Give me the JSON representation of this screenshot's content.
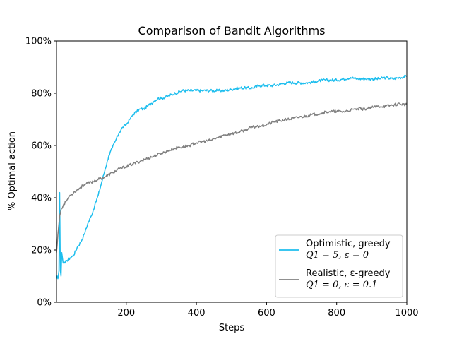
{
  "chart_data": {
    "type": "line",
    "title": "Comparison of Bandit Algorithms",
    "xlabel": "Steps",
    "ylabel": "% Optimal action",
    "xlim": [
      1,
      1000
    ],
    "ylim": [
      0,
      100
    ],
    "xticks": [
      200,
      400,
      600,
      800,
      1000
    ],
    "yticks": [
      0,
      20,
      40,
      60,
      80,
      100
    ],
    "ytick_format": "%",
    "grid": false,
    "legend_position": "lower-right",
    "series": [
      {
        "name": "Optimistic, greedy",
        "subtitle": "Q1 = 5, ε = 0",
        "color": "#1ebeee",
        "x": [
          1,
          3,
          5,
          8,
          10,
          12,
          14,
          16,
          18,
          20,
          25,
          30,
          40,
          50,
          60,
          70,
          80,
          90,
          100,
          110,
          120,
          130,
          140,
          150,
          160,
          170,
          180,
          190,
          200,
          210,
          220,
          230,
          240,
          250,
          260,
          270,
          280,
          290,
          300,
          320,
          340,
          360,
          380,
          400,
          420,
          440,
          460,
          480,
          500,
          520,
          540,
          560,
          580,
          600,
          620,
          640,
          660,
          680,
          700,
          720,
          740,
          760,
          780,
          800,
          820,
          840,
          860,
          880,
          900,
          920,
          940,
          960,
          980,
          1000
        ],
        "y": [
          9,
          10,
          9,
          12,
          42,
          12,
          10,
          19,
          17,
          15,
          15,
          16,
          17,
          18,
          21,
          23,
          26,
          30,
          33,
          37,
          41,
          46,
          51,
          56,
          59,
          62,
          65,
          67,
          68,
          70,
          72,
          73,
          74,
          74,
          75,
          76,
          77,
          78,
          78,
          79,
          80,
          81,
          81,
          81,
          81,
          81,
          81,
          81,
          81.5,
          82,
          82,
          82,
          83,
          83,
          83,
          83.5,
          84,
          84,
          84,
          84,
          84.5,
          85,
          85,
          85,
          85.5,
          86,
          85.5,
          85.5,
          85.5,
          85.5,
          86,
          85.5,
          86,
          86.5
        ]
      },
      {
        "name": "Realistic, ε-greedy",
        "subtitle": "Q1 = 0, ε = 0.1",
        "color": "#808080",
        "x": [
          1,
          3,
          5,
          8,
          10,
          15,
          20,
          30,
          40,
          50,
          60,
          70,
          80,
          100,
          120,
          140,
          160,
          180,
          200,
          220,
          240,
          260,
          280,
          300,
          320,
          340,
          360,
          380,
          400,
          420,
          440,
          460,
          480,
          500,
          520,
          540,
          560,
          580,
          600,
          620,
          640,
          660,
          680,
          700,
          720,
          740,
          760,
          780,
          800,
          820,
          840,
          860,
          880,
          900,
          920,
          940,
          960,
          980,
          1000
        ],
        "y": [
          19,
          22,
          26,
          30,
          33,
          36,
          37,
          39,
          41,
          42,
          43,
          44,
          45,
          46,
          47,
          48,
          49.5,
          51,
          52,
          53,
          54,
          55,
          56,
          57,
          58,
          59,
          59.5,
          60,
          61,
          61.5,
          62,
          63,
          64,
          64.5,
          65,
          66,
          67,
          67.5,
          68,
          69,
          69.5,
          70,
          70.5,
          71,
          71.5,
          72,
          72.5,
          73,
          73,
          73,
          73.5,
          74,
          74,
          74.5,
          75,
          75,
          75.5,
          76,
          75.5
        ]
      }
    ]
  }
}
